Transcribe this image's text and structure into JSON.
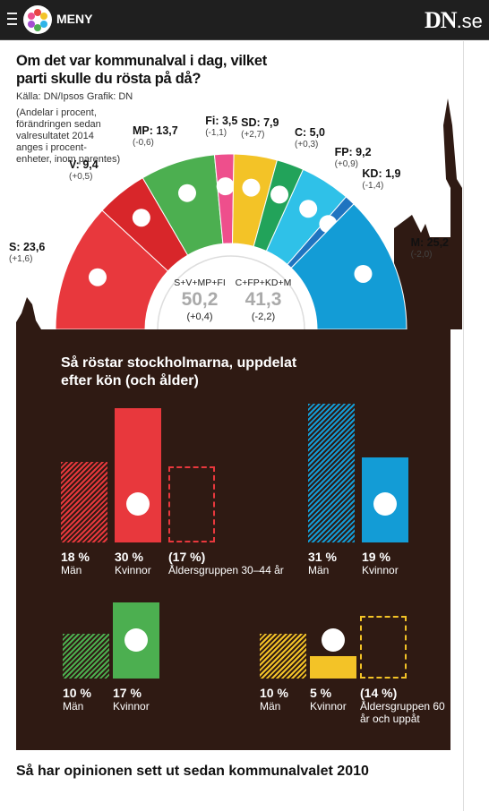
{
  "topbar": {
    "menu_label": "MENY",
    "brand": "DN",
    "brand_suffix": ".se"
  },
  "title": "Om det var kommunalval i dag, vilket parti skulle du rösta på då?",
  "credits": "Källa: DN/Ipsos   Grafik: DN",
  "note": "(Andelar i procent, förändringen sedan valresultatet 2014 anges i procent-enheter, inom parentes)",
  "middle": {
    "left": {
      "label": "S+V+MP+FI",
      "value": "50,2",
      "change": "(+0,4)"
    },
    "right": {
      "label": "C+FP+KD+M",
      "value": "41,3",
      "change": "(-2,2)"
    }
  },
  "chart_data": [
    {
      "type": "pie",
      "subtitle": "Om det var kommunalval i dag, vilket parti skulle du rösta på då?",
      "categories": [
        "S",
        "V",
        "MP",
        "Fi",
        "SD",
        "C",
        "FP",
        "KD",
        "M"
      ],
      "values": [
        23.6,
        9.4,
        13.7,
        3.5,
        7.9,
        5.0,
        9.2,
        1.9,
        25.2
      ],
      "changes": [
        1.6,
        0.5,
        -0.6,
        -1.1,
        2.7,
        0.3,
        0.9,
        -1.4,
        -2.0
      ],
      "labels": [
        "S: 23,6",
        "V: 9,4",
        "MP: 13,7",
        "Fi: 3,5",
        "SD: 7,9",
        "C: 5,0",
        "FP: 9,2",
        "KD: 1,9",
        "M: 25,2"
      ],
      "change_labels": [
        "(+1,6)",
        "(+0,5)",
        "(-0,6)",
        "(-1,1)",
        "(+2,7)",
        "(+0,3)",
        "(+0,9)",
        "(-1,4)",
        "(-2,0)"
      ],
      "colors": [
        "#e8383d",
        "#d8262a",
        "#4caf50",
        "#ee4f8c",
        "#f3c327",
        "#22a35a",
        "#2fc1e8",
        "#1f74c0",
        "#139cd6"
      ]
    },
    {
      "type": "bar",
      "title": "Så röstar stockholmarna, uppdelat efter kön (och ålder)",
      "groups": [
        {
          "party": "S",
          "color": "#e8383d",
          "categories": [
            "Män",
            "Kvinnor",
            "Åldersgruppen 30–44 år"
          ],
          "values": [
            18,
            30,
            17
          ],
          "labels": [
            "18 %",
            "30 %",
            "(17 %)"
          ]
        },
        {
          "party": "M",
          "color": "#139cd6",
          "categories": [
            "Män",
            "Kvinnor"
          ],
          "values": [
            31,
            19
          ],
          "labels": [
            "31 %",
            "19 %"
          ]
        },
        {
          "party": "MP",
          "color": "#4caf50",
          "categories": [
            "Män",
            "Kvinnor"
          ],
          "values": [
            10,
            17
          ],
          "labels": [
            "10 %",
            "17 %"
          ]
        },
        {
          "party": "C",
          "color": "#f3c327",
          "categories": [
            "Män",
            "Kvinnor",
            "Åldersgruppen 60 år och uppåt"
          ],
          "values": [
            10,
            5,
            14
          ],
          "labels": [
            "10 %",
            "5 %",
            "(14 %)"
          ]
        }
      ]
    }
  ],
  "bottom_title": "Så har opinionen sett ut sedan kommunalvalet 2010"
}
